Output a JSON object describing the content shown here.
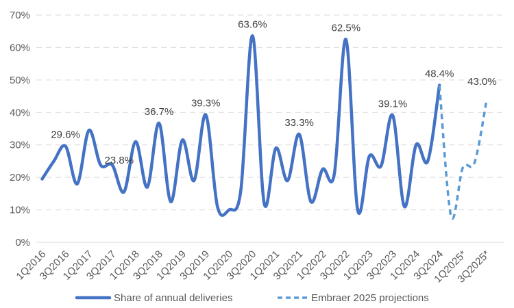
{
  "chart_data": {
    "type": "line",
    "categories": [
      "1Q2016",
      "2Q2016",
      "3Q2016",
      "4Q2016",
      "1Q2017",
      "2Q2017",
      "3Q2017",
      "4Q2017",
      "1Q2018",
      "2Q2018",
      "3Q2018",
      "4Q2018",
      "1Q2019",
      "2Q2019",
      "3Q2019",
      "4Q2019",
      "1Q2020",
      "2Q2020",
      "3Q2020",
      "4Q2020",
      "1Q2021",
      "2Q2021",
      "3Q2021",
      "4Q2021",
      "1Q2022",
      "2Q2022",
      "3Q2022",
      "4Q2022",
      "1Q2023",
      "2Q2023",
      "3Q2023",
      "4Q2023",
      "1Q2024",
      "2Q2024",
      "3Q2024",
      "4Q2024",
      "1Q2025*",
      "2Q2025*",
      "3Q2025*",
      "4Q2025*"
    ],
    "tick_labels": [
      "1Q2016",
      "3Q2016",
      "1Q2017",
      "3Q2017",
      "1Q2018",
      "3Q2018",
      "1Q2019",
      "3Q2019",
      "1Q2020",
      "3Q2020",
      "1Q2021",
      "3Q2021",
      "1Q2022",
      "3Q2022",
      "1Q2023",
      "3Q2023",
      "1Q2024",
      "3Q2024",
      "1Q2025*",
      "3Q2025*"
    ],
    "series": [
      {
        "name": "Share of annual deliveries",
        "color": "#4472C4",
        "style": "solid",
        "values": [
          19.5,
          25.0,
          29.6,
          18.0,
          34.5,
          23.8,
          23.8,
          15.5,
          31.0,
          17.0,
          36.7,
          12.5,
          31.5,
          19.0,
          39.3,
          11.0,
          10.0,
          16.0,
          63.6,
          12.0,
          29.0,
          19.0,
          33.3,
          12.5,
          22.5,
          21.0,
          62.5,
          10.0,
          26.5,
          23.5,
          39.1,
          11.0,
          30.0,
          25.0,
          48.4,
          null,
          null,
          null,
          null,
          null
        ]
      },
      {
        "name": "Embraer 2025 projections",
        "color": "#5B9BD5",
        "style": "dashed",
        "values": [
          null,
          null,
          null,
          null,
          null,
          null,
          null,
          null,
          null,
          null,
          null,
          null,
          null,
          null,
          null,
          null,
          null,
          null,
          null,
          null,
          null,
          null,
          null,
          null,
          null,
          null,
          null,
          null,
          null,
          null,
          null,
          null,
          null,
          null,
          48.4,
          8.0,
          23.0,
          24.5,
          43.0,
          null
        ]
      }
    ],
    "data_labels": [
      {
        "index": 2,
        "text": "29.6%"
      },
      {
        "index": 6,
        "text": "23.8%"
      },
      {
        "index": 10,
        "text": "36.7%"
      },
      {
        "index": 14,
        "text": "39.3%"
      },
      {
        "index": 18,
        "text": "63.6%"
      },
      {
        "index": 22,
        "text": "33.3%"
      },
      {
        "index": 26,
        "text": "62.5%"
      },
      {
        "index": 30,
        "text": "39.1%"
      },
      {
        "index": 34,
        "text": "48.4%"
      },
      {
        "index": 38,
        "text": "43.0%"
      }
    ],
    "y_ticks": [
      "0%",
      "10%",
      "20%",
      "30%",
      "40%",
      "50%",
      "60%",
      "70%"
    ],
    "ylim": [
      0,
      70
    ],
    "grid": true,
    "legend_position": "bottom",
    "title": "",
    "xlabel": "",
    "ylabel": ""
  }
}
